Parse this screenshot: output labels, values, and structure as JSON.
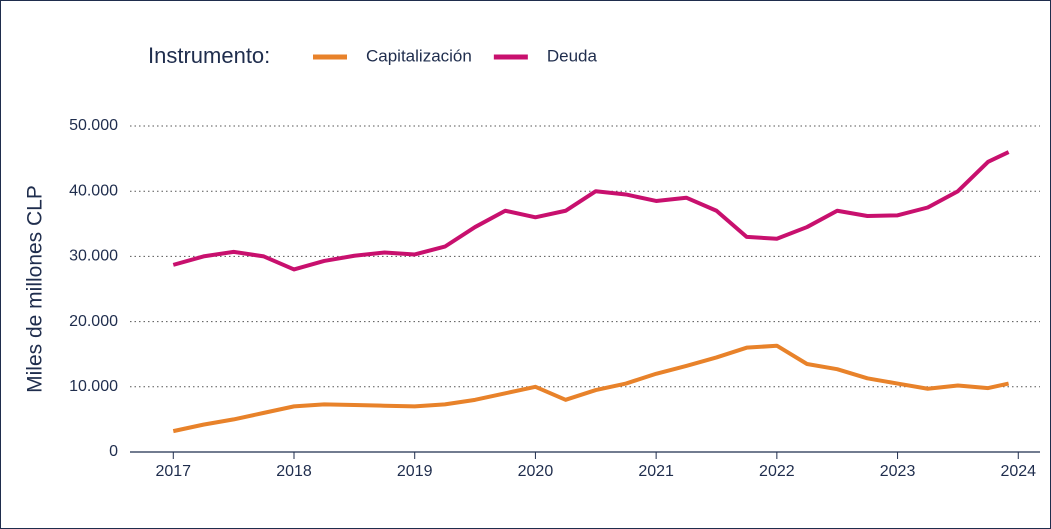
{
  "chart_data": {
    "type": "line",
    "y_label": "Miles de millones CLP",
    "legend_title": "Instrumento:",
    "x": [
      2017,
      2017.25,
      2017.5,
      2017.75,
      2018,
      2018.25,
      2018.5,
      2018.75,
      2019,
      2019.25,
      2019.5,
      2019.75,
      2020,
      2020.25,
      2020.5,
      2020.75,
      2021,
      2021.25,
      2021.5,
      2021.75,
      2022,
      2022.25,
      2022.5,
      2022.75,
      2023,
      2023.25,
      2023.5,
      2023.75,
      2023.92
    ],
    "series": [
      {
        "name": "Capitalización",
        "color": "#e8822a",
        "values": [
          3200,
          4200,
          5000,
          6000,
          7000,
          7300,
          7200,
          7100,
          7000,
          7300,
          8000,
          9000,
          10000,
          8000,
          9500,
          10500,
          12000,
          13200,
          14500,
          16000,
          16300,
          13500,
          12700,
          11300,
          10500,
          9700,
          10200,
          9800,
          10500
        ]
      },
      {
        "name": "Deuda",
        "color": "#c8106e",
        "values": [
          28700,
          30000,
          30700,
          30000,
          28000,
          29300,
          30100,
          30600,
          30300,
          31500,
          34500,
          37000,
          36000,
          37000,
          40000,
          39500,
          38500,
          39000,
          37000,
          33000,
          32700,
          34500,
          37000,
          36200,
          36300,
          37500,
          40000,
          44500,
          46000
        ]
      }
    ],
    "xlim": [
      2016.6,
      2024.18
    ],
    "xticks": [
      2017,
      2018,
      2019,
      2020,
      2021,
      2022,
      2023,
      2024
    ],
    "ylim": [
      0,
      50000
    ],
    "yticks": [
      0,
      {
        "value": 10000,
        "label": "10.000"
      },
      {
        "value": 20000,
        "label": "20.000"
      },
      {
        "value": 30000,
        "label": "30.000"
      },
      {
        "value": 40000,
        "label": "40.000"
      },
      {
        "value": 50000,
        "label": "50.000"
      }
    ],
    "grid": true
  }
}
